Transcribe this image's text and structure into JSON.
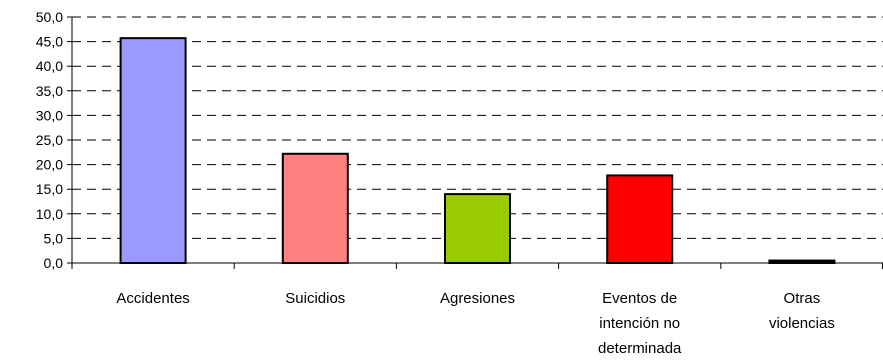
{
  "chart_data": {
    "type": "bar",
    "title": "",
    "xlabel": "",
    "ylabel": "",
    "ylim": [
      0,
      50
    ],
    "yticks": [
      "0,0",
      "5,0",
      "10,0",
      "15,0",
      "20,0",
      "25,0",
      "30,0",
      "35,0",
      "40,0",
      "45,0",
      "50,0"
    ],
    "grid": true,
    "legend": "none",
    "categories": [
      [
        "Accidentes"
      ],
      [
        "Suicidios"
      ],
      [
        "Agresiones"
      ],
      [
        "Eventos de",
        "intención no",
        "determinada"
      ],
      [
        "Otras",
        "violencias"
      ]
    ],
    "values": [
      45.7,
      22.2,
      14.0,
      17.8,
      0.5
    ],
    "colors": [
      "#9999ff",
      "#ff8080",
      "#99cc00",
      "#ff0000",
      "#000000"
    ]
  }
}
